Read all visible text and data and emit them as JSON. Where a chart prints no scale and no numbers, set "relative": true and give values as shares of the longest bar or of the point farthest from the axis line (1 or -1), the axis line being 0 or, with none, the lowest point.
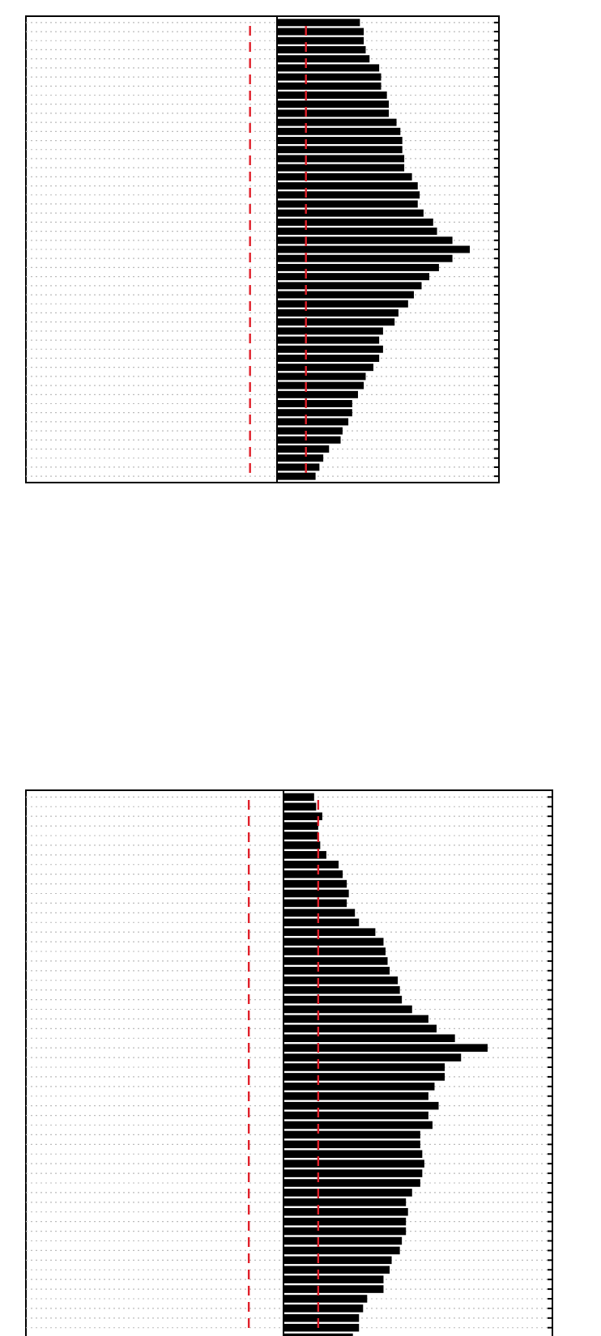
{
  "chart_data": [
    {
      "type": "bar",
      "orientation": "horizontal",
      "relative": true,
      "grid": "y",
      "categories": [
        null,
        null,
        null,
        null,
        null,
        null,
        null,
        null,
        null,
        null,
        null,
        null,
        null,
        null,
        null,
        null,
        null,
        null,
        null,
        null,
        null,
        null,
        null,
        null,
        null,
        null,
        null,
        null,
        null,
        null,
        null,
        null,
        null,
        null,
        null,
        null,
        null,
        null,
        null,
        null,
        null,
        null,
        null,
        null,
        null,
        null,
        null,
        null,
        null,
        null,
        null
      ],
      "series": [
        {
          "color": "#000000",
          "values": [
            0.43,
            0.45,
            0.45,
            0.46,
            0.48,
            0.53,
            0.54,
            0.54,
            0.57,
            0.58,
            0.58,
            0.62,
            0.64,
            0.65,
            0.65,
            0.66,
            0.66,
            0.7,
            0.73,
            0.74,
            0.73,
            0.76,
            0.81,
            0.83,
            0.91,
            1,
            0.91,
            0.84,
            0.79,
            0.75,
            0.71,
            0.68,
            0.63,
            0.61,
            0.55,
            0.53,
            0.55,
            0.53,
            0.5,
            0.46,
            0.45,
            0.42,
            0.39,
            0.39,
            0.37,
            0.34,
            0.33,
            0.27,
            0.24,
            0.22,
            0.2
          ]
        }
      ],
      "ref_lines": [
        {
          "axis": "x",
          "value": -0.14,
          "color": "#e0202a",
          "line_style": "dashed"
        },
        {
          "axis": "x",
          "value": 0.15,
          "color": "#e0202a",
          "line_style": "dashed"
        }
      ]
    },
    {
      "type": "bar",
      "orientation": "horizontal",
      "relative": true,
      "grid": "y",
      "categories": [
        null,
        null,
        null,
        null,
        null,
        null,
        null,
        null,
        null,
        null,
        null,
        null,
        null,
        null,
        null,
        null,
        null,
        null,
        null,
        null,
        null,
        null,
        null,
        null,
        null,
        null,
        null,
        null,
        null,
        null,
        null,
        null,
        null,
        null,
        null,
        null,
        null,
        null,
        null,
        null,
        null,
        null,
        null,
        null,
        null,
        null,
        null,
        null,
        null,
        null,
        null,
        null,
        null,
        null,
        null,
        null,
        null
      ],
      "series": [
        {
          "color": "#000000",
          "values": [
            0.15,
            0.16,
            0.19,
            0.17,
            0.17,
            0.18,
            0.21,
            0.27,
            0.29,
            0.31,
            0.32,
            0.31,
            0.35,
            0.37,
            0.45,
            0.49,
            0.5,
            0.51,
            0.52,
            0.56,
            0.57,
            0.58,
            0.63,
            0.71,
            0.75,
            0.84,
            1,
            0.87,
            0.79,
            0.79,
            0.74,
            0.71,
            0.76,
            0.71,
            0.73,
            0.67,
            0.67,
            0.68,
            0.69,
            0.68,
            0.67,
            0.63,
            0.6,
            0.61,
            0.6,
            0.6,
            0.58,
            0.57,
            0.53,
            0.52,
            0.49,
            0.49,
            0.41,
            0.39,
            0.37,
            0.37,
            0.34
          ]
        }
      ],
      "ref_lines": [
        {
          "axis": "x",
          "value": -0.17,
          "color": "#e0202a",
          "line_style": "dashed"
        },
        {
          "axis": "x",
          "value": 0.17,
          "color": "#e0202a",
          "line_style": "dashed"
        }
      ]
    }
  ]
}
